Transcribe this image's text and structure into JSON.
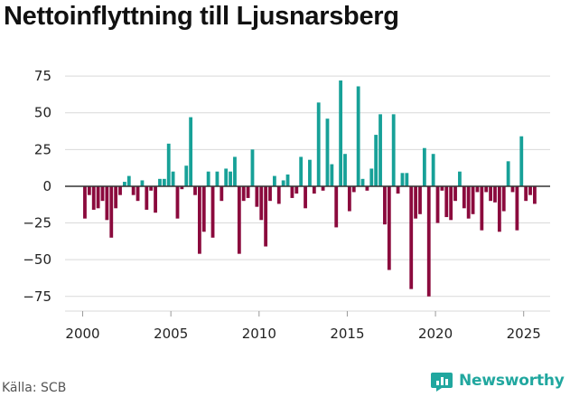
{
  "header": {
    "title": "Nettoinflyttning till Ljusnarsberg"
  },
  "footer": {
    "source": "Källa: SCB",
    "brand": "Newsworthy"
  },
  "colors": {
    "positive": "#17a198",
    "negative": "#8b0a3d",
    "grid": "#d9d9d9",
    "zero_line": "#333333",
    "brand": "#21a79f"
  },
  "chart_data": {
    "type": "bar",
    "title": "Nettoinflyttning till Ljusnarsberg",
    "xlabel": "",
    "ylabel": "",
    "frequency": "monthly",
    "x_start": 2000.0,
    "x_step": 0.25,
    "xlim": [
      1999.0,
      2026.5
    ],
    "ylim": [
      -85,
      80
    ],
    "yticks": [
      75,
      50,
      25,
      0,
      -25,
      -50,
      -75
    ],
    "xticks": [
      2000,
      2005,
      2010,
      2015,
      2020,
      2025
    ],
    "values": [
      -22,
      -6,
      -16,
      -15,
      -10,
      -23,
      -35,
      -15,
      -6,
      3,
      7,
      -6,
      -10,
      4,
      -16,
      -3,
      -18,
      5,
      5,
      29,
      10,
      -22,
      -2,
      14,
      47,
      -6,
      -46,
      -31,
      10,
      -35,
      10,
      -10,
      12,
      10,
      20,
      -46,
      -10,
      -8,
      25,
      -14,
      -23,
      -41,
      -10,
      7,
      -12,
      4,
      8,
      -8,
      -5,
      20,
      -15,
      18,
      -5,
      57,
      -3,
      46,
      15,
      -28,
      72,
      22,
      -17,
      -4,
      68,
      5,
      -3,
      12,
      35,
      49,
      -26,
      -57,
      49,
      -5,
      9,
      9,
      -70,
      -22,
      -19,
      26,
      -75,
      22,
      -25,
      -3,
      -21,
      -23,
      -10,
      10,
      -15,
      -22,
      -19,
      -4,
      -30,
      -4,
      -10,
      -11,
      -31,
      -17,
      17,
      -4,
      -30,
      34,
      -10,
      -6,
      -12
    ]
  }
}
